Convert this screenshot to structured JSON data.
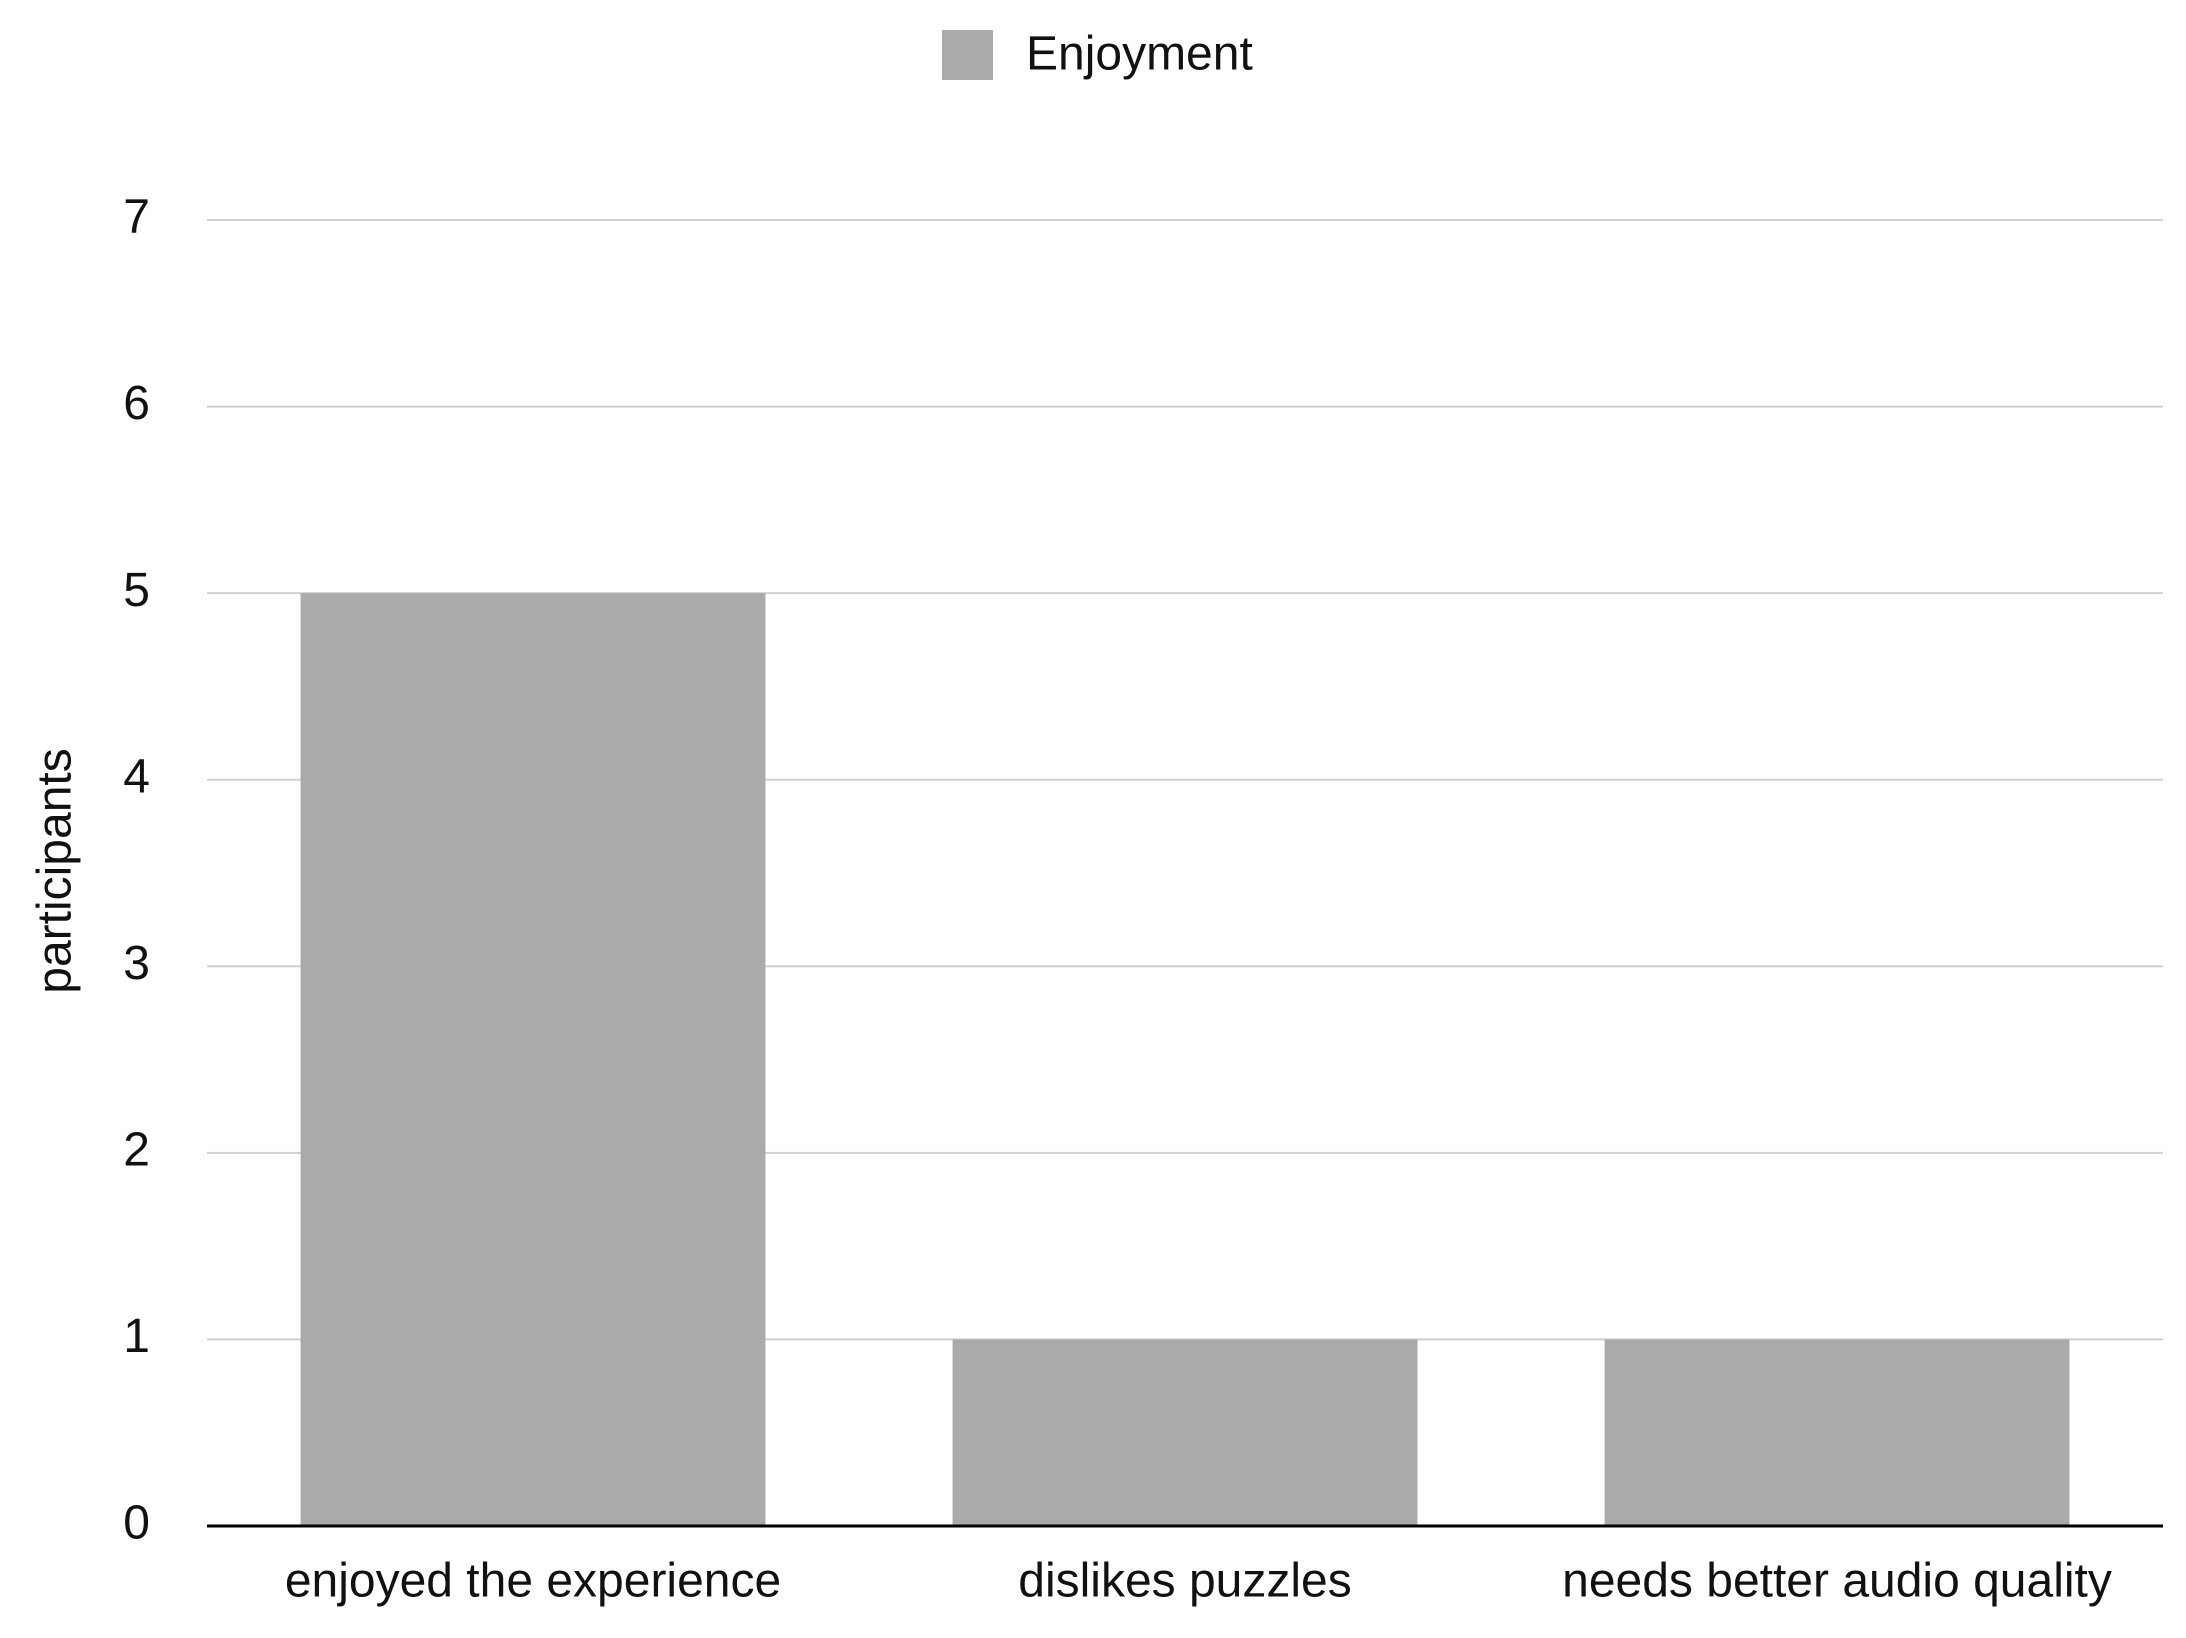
{
  "chart_data": {
    "type": "bar",
    "y_label": "participants",
    "categories": [
      "enjoyed the experience",
      "dislikes puzzles",
      "needs better audio quality"
    ],
    "series": [
      {
        "name": "Enjoyment",
        "color": "#aaaaaa",
        "values": [
          5,
          1,
          1
        ]
      }
    ],
    "ylim": [
      0,
      7
    ],
    "yticks": [
      0,
      1,
      2,
      3,
      4,
      5,
      6,
      7
    ],
    "grid": true,
    "legend": "top"
  }
}
